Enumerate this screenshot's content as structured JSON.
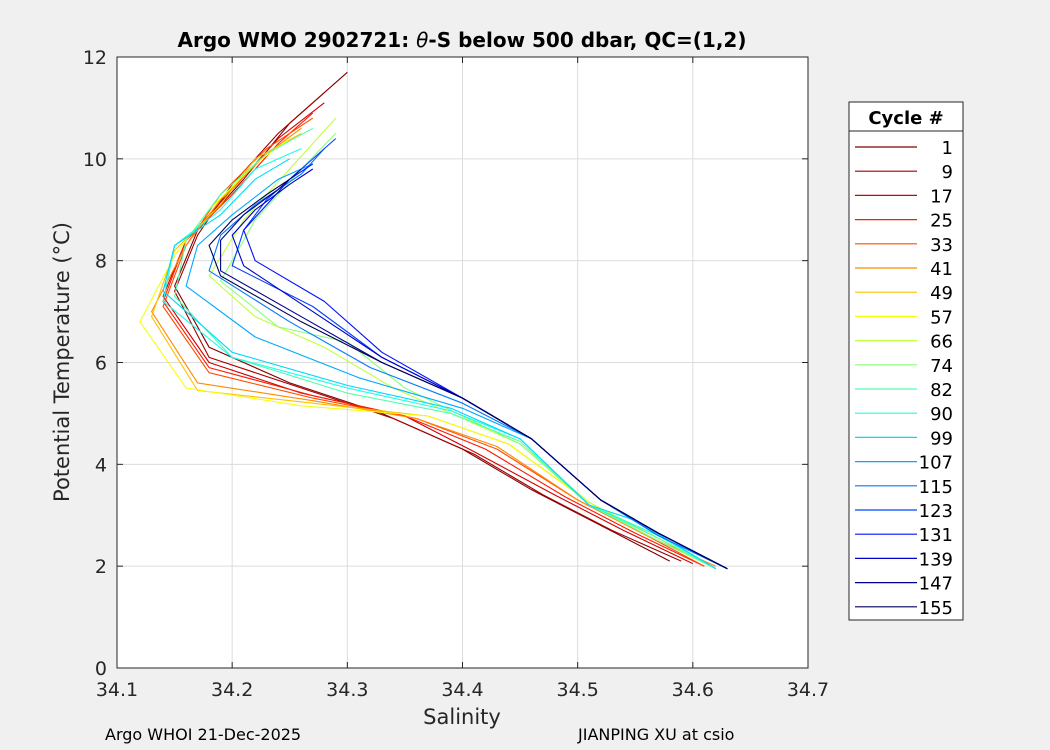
{
  "chart_data": {
    "type": "line",
    "title": "Argo WMO 2902721: θ-S below 500 dbar,  QC=(1,2)",
    "title_prefix": "Argo WMO 2902721: ",
    "title_theta": "θ",
    "title_rest": "-S below 500 dbar,  QC=(1,2)",
    "xlabel": "Salinity",
    "ylabel": "Potential Temperature (°C)",
    "xlim": [
      34.1,
      34.7
    ],
    "ylim": [
      0,
      12
    ],
    "x_ticks": [
      "34.1",
      "34.2",
      "34.3",
      "34.4",
      "34.5",
      "34.6",
      "34.7"
    ],
    "y_ticks": [
      "0",
      "2",
      "4",
      "6",
      "8",
      "10",
      "12"
    ],
    "grid": true,
    "legend": {
      "title": "Cycle #",
      "placement": "right-outside",
      "entries": [
        {
          "label": "1",
          "color": "#7f0000"
        },
        {
          "label": "9",
          "color": "#a30000"
        },
        {
          "label": "17",
          "color": "#d40000"
        },
        {
          "label": "25",
          "color": "#ff1a00"
        },
        {
          "label": "33",
          "color": "#ff4d00"
        },
        {
          "label": "41",
          "color": "#ff8a00"
        },
        {
          "label": "49",
          "color": "#ffc000"
        },
        {
          "label": "57",
          "color": "#f5ff0a"
        },
        {
          "label": "66",
          "color": "#c0ff3f"
        },
        {
          "label": "74",
          "color": "#8aff75"
        },
        {
          "label": "82",
          "color": "#50ffaf"
        },
        {
          "label": "90",
          "color": "#1affe5"
        },
        {
          "label": "99",
          "color": "#00d8ff"
        },
        {
          "label": "107",
          "color": "#00a8ff"
        },
        {
          "label": "115",
          "color": "#0078ff"
        },
        {
          "label": "123",
          "color": "#0040ff"
        },
        {
          "label": "131",
          "color": "#0010ff"
        },
        {
          "label": "139",
          "color": "#0000c8"
        },
        {
          "label": "147",
          "color": "#000090"
        },
        {
          "label": "155",
          "color": "#00005a"
        }
      ]
    },
    "series": [
      {
        "name": "1",
        "color": "#7f0000",
        "x": [
          34.58,
          34.52,
          34.46,
          34.4,
          34.33,
          34.25,
          34.18,
          34.15,
          34.17,
          34.21,
          34.25,
          34.3
        ],
        "y": [
          2.1,
          2.8,
          3.5,
          4.3,
          5.0,
          5.6,
          6.3,
          7.5,
          8.6,
          9.6,
          10.7,
          11.7
        ]
      },
      {
        "name": "9",
        "color": "#a30000",
        "x": [
          34.59,
          34.53,
          34.47,
          34.41,
          34.34,
          34.26,
          34.18,
          34.15,
          34.17,
          34.2,
          34.24,
          34.28
        ],
        "y": [
          2.1,
          2.7,
          3.4,
          4.2,
          4.9,
          5.5,
          6.1,
          7.4,
          8.5,
          9.5,
          10.5,
          11.3
        ]
      },
      {
        "name": "17",
        "color": "#d40000",
        "x": [
          34.6,
          34.54,
          34.48,
          34.41,
          34.35,
          34.26,
          34.18,
          34.14,
          34.16,
          34.2,
          34.24,
          34.28
        ],
        "y": [
          2.05,
          2.7,
          3.4,
          4.25,
          4.95,
          5.4,
          6.0,
          7.3,
          8.4,
          9.4,
          10.4,
          11.1
        ]
      },
      {
        "name": "25",
        "color": "#ff1a00",
        "x": [
          34.61,
          34.55,
          34.49,
          34.42,
          34.35,
          34.27,
          34.18,
          34.14,
          34.16,
          34.2,
          34.24,
          34.27
        ],
        "y": [
          2.0,
          2.65,
          3.35,
          4.3,
          4.95,
          5.35,
          5.9,
          7.2,
          8.4,
          9.3,
          10.3,
          10.9
        ]
      },
      {
        "name": "33",
        "color": "#ff4d00",
        "x": [
          34.61,
          34.56,
          34.5,
          34.43,
          34.36,
          34.27,
          34.18,
          34.14,
          34.16,
          34.19,
          34.23,
          34.27
        ],
        "y": [
          2.0,
          2.6,
          3.3,
          4.3,
          4.9,
          5.3,
          5.8,
          7.1,
          8.3,
          9.3,
          10.2,
          10.8
        ]
      },
      {
        "name": "41",
        "color": "#ff8a00",
        "x": [
          34.62,
          34.56,
          34.5,
          34.43,
          34.36,
          34.27,
          34.17,
          34.13,
          34.16,
          34.19,
          34.23,
          34.26
        ],
        "y": [
          2.0,
          2.6,
          3.3,
          4.35,
          4.9,
          5.25,
          5.6,
          7.0,
          8.3,
          9.2,
          10.1,
          10.6
        ]
      },
      {
        "name": "49",
        "color": "#ffc000",
        "x": [
          34.62,
          34.57,
          34.51,
          34.44,
          34.37,
          34.27,
          34.17,
          34.13,
          34.15,
          34.19,
          34.22,
          34.26
        ],
        "y": [
          1.95,
          2.55,
          3.25,
          4.4,
          4.95,
          5.2,
          5.45,
          6.9,
          8.2,
          9.1,
          10.0,
          10.5
        ]
      },
      {
        "name": "57",
        "color": "#f5ff0a",
        "x": [
          34.62,
          34.57,
          34.51,
          34.44,
          34.37,
          34.26,
          34.16,
          34.12,
          34.15,
          34.18,
          34.22,
          34.25
        ],
        "y": [
          1.95,
          2.55,
          3.25,
          4.4,
          4.95,
          5.15,
          5.5,
          6.8,
          8.1,
          9.0,
          9.9,
          10.4
        ]
      },
      {
        "name": "66",
        "color": "#c0ff3f",
        "x": [
          34.62,
          34.57,
          34.51,
          34.45,
          34.4,
          34.34,
          34.28,
          34.22,
          34.18,
          34.21,
          34.25,
          34.29
        ],
        "y": [
          1.95,
          2.55,
          3.25,
          4.4,
          4.9,
          5.5,
          6.3,
          6.9,
          7.7,
          8.8,
          9.8,
          10.8
        ]
      },
      {
        "name": "74",
        "color": "#8aff75",
        "x": [
          34.62,
          34.57,
          34.51,
          34.45,
          34.4,
          34.35,
          34.3,
          34.24,
          34.19,
          34.22,
          34.26,
          34.29
        ],
        "y": [
          1.95,
          2.5,
          3.2,
          4.4,
          4.95,
          5.5,
          6.4,
          6.7,
          7.6,
          8.8,
          9.8,
          10.5
        ]
      },
      {
        "name": "82",
        "color": "#50ffaf",
        "x": [
          34.62,
          34.57,
          34.51,
          34.45,
          34.39,
          34.3,
          34.2,
          34.15,
          34.16,
          34.19,
          34.23,
          34.27
        ],
        "y": [
          1.95,
          2.55,
          3.2,
          4.45,
          5.0,
          5.4,
          6.1,
          7.3,
          8.4,
          9.3,
          10.1,
          10.6
        ]
      },
      {
        "name": "90",
        "color": "#1affe5",
        "x": [
          34.62,
          34.57,
          34.51,
          34.45,
          34.39,
          34.3,
          34.2,
          34.14,
          34.15,
          34.19,
          34.22,
          34.26
        ],
        "y": [
          1.95,
          2.6,
          3.2,
          4.5,
          5.05,
          5.5,
          6.1,
          7.2,
          8.3,
          9.0,
          9.8,
          10.2
        ]
      },
      {
        "name": "99",
        "color": "#00d8ff",
        "x": [
          34.62,
          34.55,
          34.51,
          34.45,
          34.39,
          34.3,
          34.2,
          34.14,
          34.15,
          34.19,
          34.22,
          34.25
        ],
        "y": [
          1.95,
          2.9,
          3.2,
          4.5,
          5.1,
          5.55,
          6.2,
          7.4,
          8.3,
          8.9,
          9.6,
          10.0
        ]
      },
      {
        "name": "107",
        "color": "#00a8ff",
        "x": [
          34.63,
          34.57,
          34.52,
          34.46,
          34.4,
          34.31,
          34.22,
          34.16,
          34.17,
          34.2,
          34.24,
          34.27
        ],
        "y": [
          1.95,
          2.6,
          3.3,
          4.5,
          5.1,
          5.7,
          6.5,
          7.5,
          8.3,
          8.9,
          9.6,
          9.9
        ]
      },
      {
        "name": "115",
        "color": "#0078ff",
        "x": [
          34.63,
          34.57,
          34.52,
          34.46,
          34.4,
          34.32,
          34.25,
          34.18,
          34.19,
          34.22,
          34.26,
          34.28
        ],
        "y": [
          1.95,
          2.6,
          3.3,
          4.5,
          5.2,
          5.9,
          6.8,
          7.8,
          8.5,
          9.1,
          9.7,
          10.2
        ]
      },
      {
        "name": "123",
        "color": "#0040ff",
        "x": [
          34.63,
          34.57,
          34.52,
          34.46,
          34.4,
          34.33,
          34.27,
          34.2,
          34.21,
          34.23,
          34.26,
          34.29
        ],
        "y": [
          1.95,
          2.65,
          3.3,
          4.5,
          5.3,
          6.1,
          7.1,
          7.9,
          8.6,
          9.2,
          9.8,
          10.4
        ]
      },
      {
        "name": "131",
        "color": "#0010ff",
        "x": [
          34.63,
          34.57,
          34.52,
          34.46,
          34.4,
          34.33,
          34.28,
          34.22,
          34.21,
          34.23,
          34.25,
          34.27
        ],
        "y": [
          1.95,
          2.65,
          3.3,
          4.5,
          5.3,
          6.2,
          7.2,
          8.0,
          8.6,
          9.1,
          9.6,
          9.9
        ]
      },
      {
        "name": "139",
        "color": "#0000c8",
        "x": [
          34.63,
          34.57,
          34.52,
          34.46,
          34.4,
          34.33,
          34.27,
          34.21,
          34.2,
          34.22,
          34.25,
          34.27
        ],
        "y": [
          1.95,
          2.65,
          3.3,
          4.5,
          5.3,
          6.1,
          7.0,
          7.9,
          8.5,
          9.0,
          9.5,
          9.8
        ]
      },
      {
        "name": "147",
        "color": "#000090",
        "x": [
          34.63,
          34.57,
          34.52,
          34.46,
          34.4,
          34.33,
          34.26,
          34.19,
          34.19,
          34.21,
          34.24,
          34.26
        ],
        "y": [
          1.95,
          2.65,
          3.3,
          4.5,
          5.3,
          6.0,
          6.9,
          7.8,
          8.4,
          8.9,
          9.4,
          9.8
        ]
      },
      {
        "name": "155",
        "color": "#00005a",
        "x": [
          34.63,
          34.57,
          34.52,
          34.46,
          34.4,
          34.33,
          34.26,
          34.19,
          34.18,
          34.2,
          34.23,
          34.25
        ],
        "y": [
          1.95,
          2.65,
          3.3,
          4.5,
          5.3,
          6.0,
          6.8,
          7.7,
          8.3,
          8.8,
          9.3,
          9.6
        ]
      }
    ]
  },
  "footer": {
    "left": "Argo WHOI 21-Dec-2025",
    "right": "JIANPING XU at csio"
  }
}
